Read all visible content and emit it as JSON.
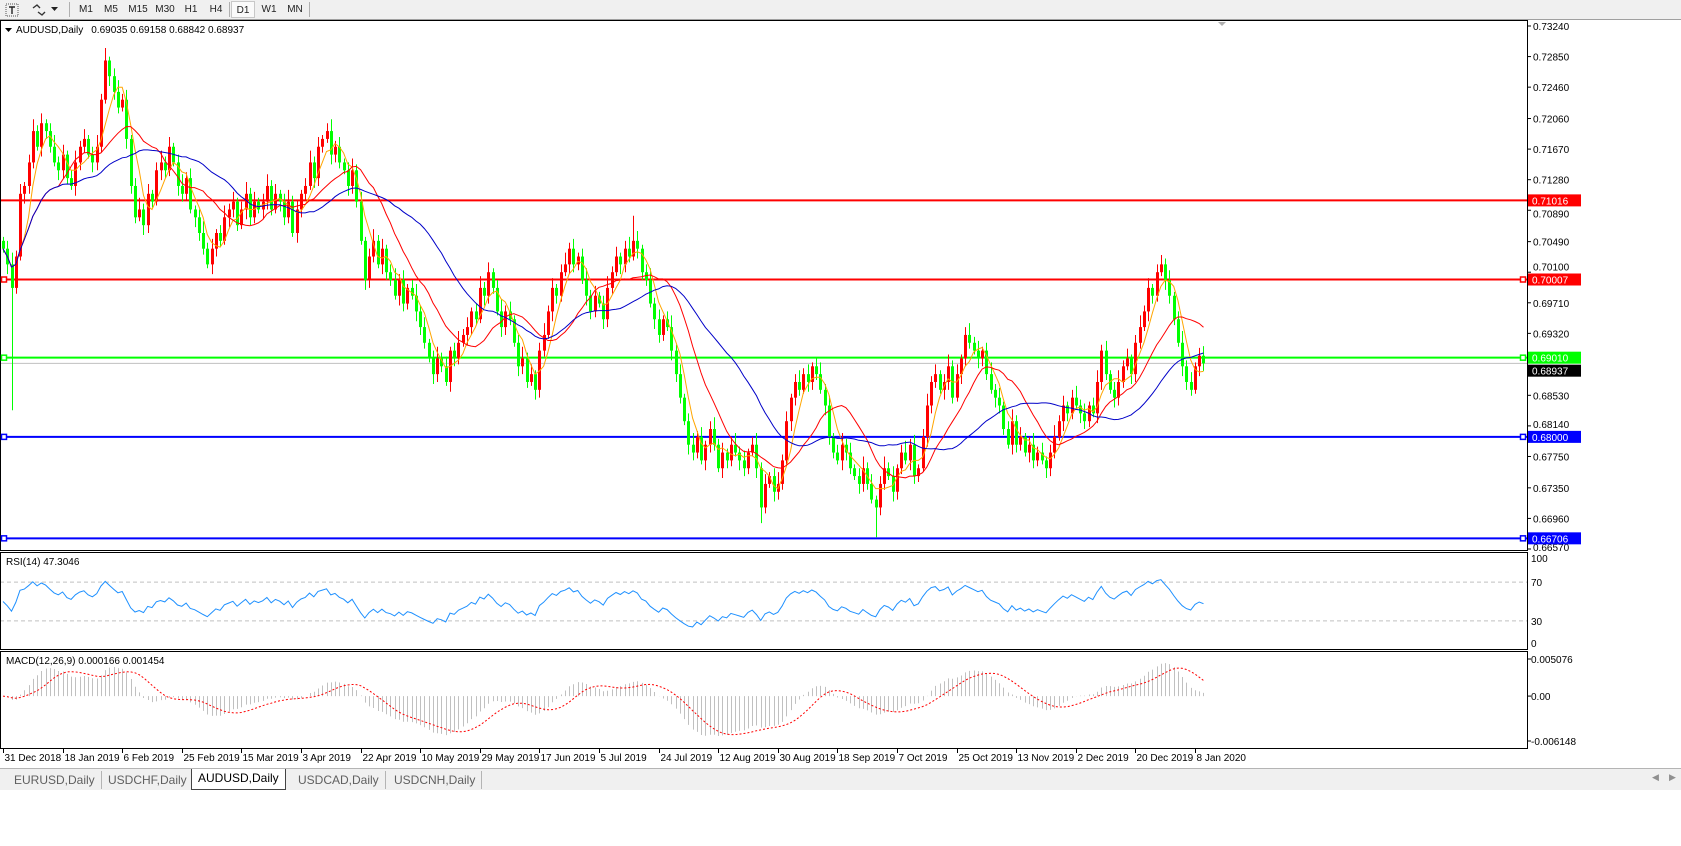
{
  "toolbar": {
    "icons": [
      "text-tool-icon",
      "draw-tools-icon",
      "dropdown-arrow-icon"
    ],
    "timeframes": [
      "M1",
      "M5",
      "M15",
      "M30",
      "H1",
      "H4",
      "D1",
      "W1",
      "MN"
    ],
    "active_timeframe": "D1"
  },
  "chart_header": {
    "symbol": "AUDUSD,Daily",
    "ohlc_text": "0.69035 0.69158 0.68842 0.68937"
  },
  "rsi_label": "RSI(14) 47.3046",
  "macd_label": "MACD(12,26,9) 0.000166 0.001454",
  "tabs": [
    "EURUSD,Daily",
    "USDCHF,Daily",
    "AUDUSD,Daily",
    "USDCAD,Daily",
    "USDCNH,Daily"
  ],
  "active_tab": "AUDUSD,Daily",
  "colors": {
    "bull_candle": "#ff0000",
    "bear_candle": "#00ff00",
    "ma_fast": "#ffa500",
    "ma_mid": "#ff0000",
    "ma_slow": "#0000c8",
    "rsi_line": "#1e90ff",
    "macd_histogram": "#c0c0c0",
    "macd_signal": "#ff0000"
  },
  "chart_data": {
    "type": "candlestick",
    "symbol": "AUDUSD",
    "timeframe": "Daily",
    "last_bar": {
      "open": 0.69035,
      "high": 0.69158,
      "low": 0.68842,
      "close": 0.68937
    },
    "first_open": 0.705,
    "closes": [
      0.704,
      0.702,
      0.699,
      0.703,
      0.711,
      0.712,
      0.715,
      0.719,
      0.717,
      0.72,
      0.719,
      0.717,
      0.715,
      0.714,
      0.716,
      0.713,
      0.712,
      0.715,
      0.717,
      0.718,
      0.716,
      0.715,
      0.717,
      0.723,
      0.728,
      0.726,
      0.724,
      0.722,
      0.723,
      0.718,
      0.712,
      0.708,
      0.709,
      0.707,
      0.711,
      0.71,
      0.714,
      0.715,
      0.714,
      0.717,
      0.715,
      0.712,
      0.711,
      0.713,
      0.709,
      0.708,
      0.706,
      0.704,
      0.702,
      0.704,
      0.706,
      0.705,
      0.708,
      0.709,
      0.71,
      0.707,
      0.709,
      0.711,
      0.708,
      0.71,
      0.709,
      0.71,
      0.712,
      0.709,
      0.711,
      0.71,
      0.708,
      0.71,
      0.706,
      0.709,
      0.711,
      0.712,
      0.715,
      0.713,
      0.717,
      0.718,
      0.719,
      0.716,
      0.717,
      0.715,
      0.714,
      0.712,
      0.714,
      0.71,
      0.705,
      0.7,
      0.703,
      0.705,
      0.702,
      0.704,
      0.701,
      0.7,
      0.698,
      0.7,
      0.697,
      0.699,
      0.698,
      0.696,
      0.694,
      0.692,
      0.69,
      0.688,
      0.69,
      0.689,
      0.687,
      0.691,
      0.69,
      0.692,
      0.693,
      0.694,
      0.696,
      0.695,
      0.699,
      0.698,
      0.701,
      0.699,
      0.696,
      0.694,
      0.696,
      0.695,
      0.692,
      0.689,
      0.69,
      0.687,
      0.688,
      0.686,
      0.691,
      0.693,
      0.696,
      0.699,
      0.698,
      0.701,
      0.702,
      0.704,
      0.702,
      0.703,
      0.7,
      0.698,
      0.696,
      0.698,
      0.697,
      0.695,
      0.699,
      0.701,
      0.703,
      0.702,
      0.704,
      0.703,
      0.705,
      0.704,
      0.701,
      0.7,
      0.697,
      0.695,
      0.693,
      0.695,
      0.694,
      0.691,
      0.688,
      0.685,
      0.682,
      0.679,
      0.678,
      0.68,
      0.677,
      0.679,
      0.681,
      0.679,
      0.676,
      0.678,
      0.677,
      0.679,
      0.678,
      0.677,
      0.676,
      0.678,
      0.679,
      0.676,
      0.671,
      0.674,
      0.675,
      0.673,
      0.674,
      0.677,
      0.682,
      0.685,
      0.687,
      0.686,
      0.688,
      0.687,
      0.689,
      0.688,
      0.686,
      0.684,
      0.68,
      0.678,
      0.677,
      0.679,
      0.678,
      0.676,
      0.675,
      0.674,
      0.676,
      0.674,
      0.672,
      0.671,
      0.674,
      0.676,
      0.675,
      0.673,
      0.676,
      0.678,
      0.677,
      0.679,
      0.675,
      0.676,
      0.68,
      0.684,
      0.687,
      0.688,
      0.686,
      0.687,
      0.689,
      0.685,
      0.688,
      0.69,
      0.693,
      0.692,
      0.691,
      0.69,
      0.691,
      0.688,
      0.686,
      0.685,
      0.684,
      0.681,
      0.679,
      0.682,
      0.679,
      0.68,
      0.678,
      0.679,
      0.677,
      0.678,
      0.677,
      0.676,
      0.678,
      0.68,
      0.682,
      0.684,
      0.683,
      0.685,
      0.684,
      0.683,
      0.682,
      0.684,
      0.683,
      0.687,
      0.691,
      0.688,
      0.686,
      0.685,
      0.687,
      0.689,
      0.69,
      0.688,
      0.692,
      0.694,
      0.696,
      0.699,
      0.698,
      0.701,
      0.702,
      0.7,
      0.698,
      0.695,
      0.692,
      0.689,
      0.687,
      0.686,
      0.689,
      0.69035,
      0.68937
    ],
    "extremes": [
      {
        "index": 2,
        "low": 0.6834
      },
      {
        "index": 24,
        "high": 0.7296
      },
      {
        "index": 148,
        "high": 0.7082
      },
      {
        "index": 178,
        "low": 0.669
      },
      {
        "index": 205,
        "low": 0.6672
      },
      {
        "index": 272,
        "high": 0.7032
      }
    ],
    "price_axis": {
      "range": [
        0.6657,
        0.7324
      ],
      "ticks": [
        "0.73240",
        "0.72850",
        "0.72460",
        "0.72060",
        "0.71670",
        "0.71280",
        "0.70890",
        "0.70490",
        "0.70100",
        "0.69710",
        "0.69320",
        "0.68530",
        "0.68140",
        "0.67750",
        "0.67350",
        "0.66960",
        "0.66570"
      ]
    },
    "horizontal_lines": [
      {
        "price": "0.71016",
        "color": "#ff0000"
      },
      {
        "price": "0.70007",
        "color": "#ff0000"
      },
      {
        "price": "0.69010",
        "color": "#00ff00"
      },
      {
        "price": "0.68000",
        "color": "#0000ff"
      },
      {
        "price": "0.66706",
        "color": "#0000ff"
      }
    ],
    "bid_line": {
      "price": "0.68937",
      "color": "#c0c0c0"
    },
    "date_labels": [
      "31 Dec 2018",
      "18 Jan 2019",
      "6 Feb 2019",
      "25 Feb 2019",
      "15 Mar 2019",
      "3 Apr 2019",
      "22 Apr 2019",
      "10 May 2019",
      "29 May 2019",
      "17 Jun 2019",
      "5 Jul 2019",
      "24 Jul 2019",
      "12 Aug 2019",
      "30 Aug 2019",
      "18 Sep 2019",
      "7 Oct 2019",
      "25 Oct 2019",
      "13 Nov 2019",
      "2 Dec 2019",
      "20 Dec 2019",
      "8 Jan 2020"
    ],
    "rsi_axis": {
      "range": [
        0,
        100
      ],
      "ticks": [
        "100",
        "70",
        "30",
        "0"
      ],
      "levels": [
        70,
        30
      ]
    },
    "macd_axis": {
      "range": [
        -0.006148,
        0.005076
      ],
      "ticks": [
        "0.005076",
        "0.00",
        "-0.006148"
      ]
    }
  }
}
